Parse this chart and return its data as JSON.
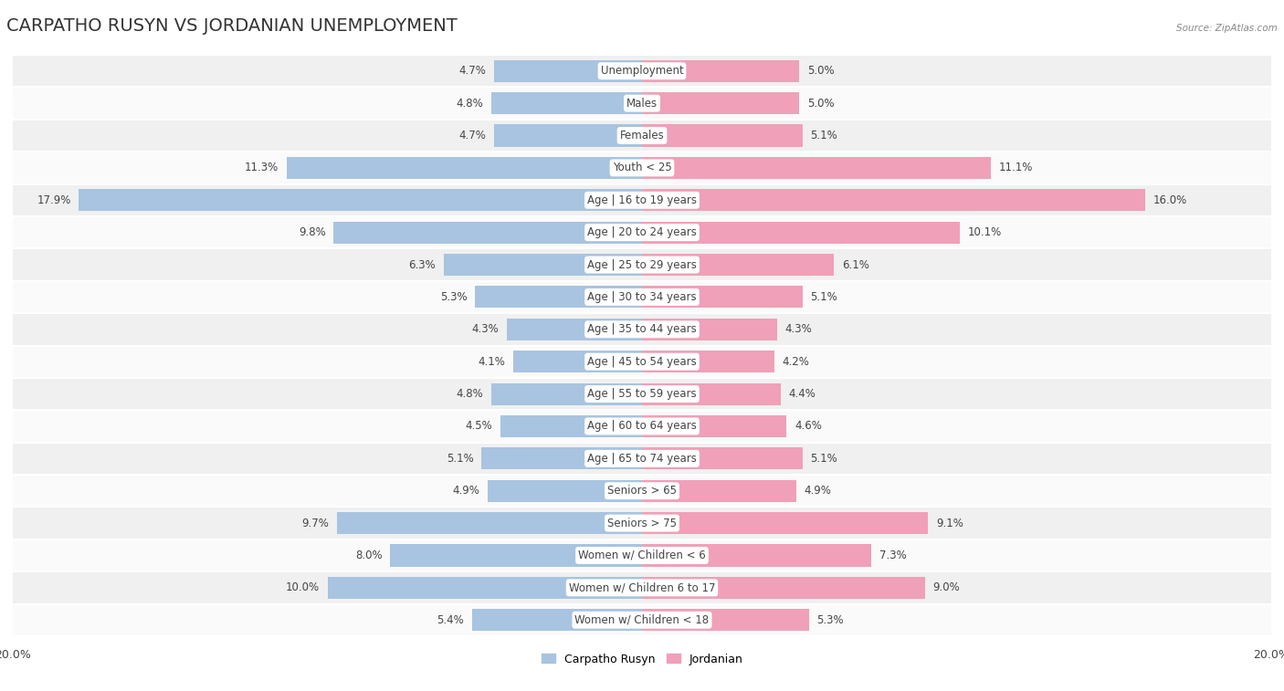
{
  "title": "CARPATHO RUSYN VS JORDANIAN UNEMPLOYMENT",
  "source": "Source: ZipAtlas.com",
  "categories": [
    "Unemployment",
    "Males",
    "Females",
    "Youth < 25",
    "Age | 16 to 19 years",
    "Age | 20 to 24 years",
    "Age | 25 to 29 years",
    "Age | 30 to 34 years",
    "Age | 35 to 44 years",
    "Age | 45 to 54 years",
    "Age | 55 to 59 years",
    "Age | 60 to 64 years",
    "Age | 65 to 74 years",
    "Seniors > 65",
    "Seniors > 75",
    "Women w/ Children < 6",
    "Women w/ Children 6 to 17",
    "Women w/ Children < 18"
  ],
  "carpatho_rusyn": [
    4.7,
    4.8,
    4.7,
    11.3,
    17.9,
    9.8,
    6.3,
    5.3,
    4.3,
    4.1,
    4.8,
    4.5,
    5.1,
    4.9,
    9.7,
    8.0,
    10.0,
    5.4
  ],
  "jordanian": [
    5.0,
    5.0,
    5.1,
    11.1,
    16.0,
    10.1,
    6.1,
    5.1,
    4.3,
    4.2,
    4.4,
    4.6,
    5.1,
    4.9,
    9.1,
    7.3,
    9.0,
    5.3
  ],
  "color_rusyn": "#a8c4e0",
  "color_jordanian": "#f0a0b8",
  "bar_height": 0.68,
  "xlim": 20.0,
  "bg_color": "#ffffff",
  "row_colors": [
    "#f0f0f0",
    "#fafafa"
  ],
  "title_fontsize": 14,
  "label_fontsize": 8.5,
  "value_fontsize": 8.5,
  "axis_fontsize": 9,
  "legend_fontsize": 9
}
